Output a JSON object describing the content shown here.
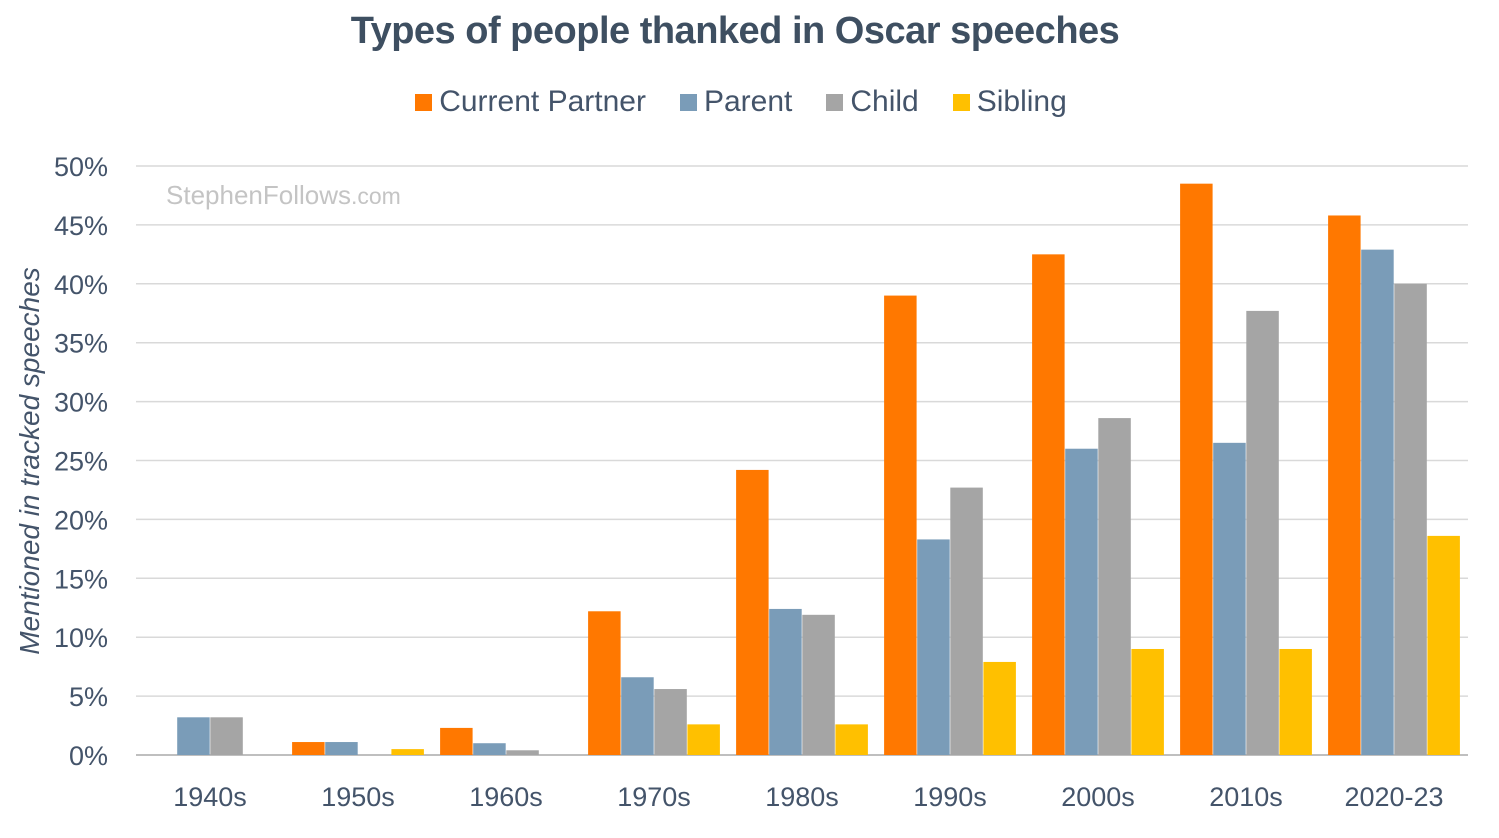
{
  "chart_data": {
    "type": "bar",
    "title": "Types of people thanked in Oscar speeches",
    "watermark": {
      "main": "StephenFollows",
      "suffix": ".com"
    },
    "xlabel": "",
    "ylabel": "Mentioned in tracked speeches",
    "categories": [
      "1940s",
      "1950s",
      "1960s",
      "1970s",
      "1980s",
      "1990s",
      "2000s",
      "2010s",
      "2020-23"
    ],
    "ylim": [
      0,
      50
    ],
    "yticks": [
      0,
      5,
      10,
      15,
      20,
      25,
      30,
      35,
      40,
      45,
      50
    ],
    "ytick_labels": [
      "0%",
      "5%",
      "10%",
      "15%",
      "20%",
      "25%",
      "30%",
      "35%",
      "40%",
      "45%",
      "50%"
    ],
    "grid": true,
    "legend_position": "top",
    "series": [
      {
        "name": "Current Partner",
        "color": "#ff7800",
        "values": [
          0,
          1.1,
          2.3,
          12.2,
          24.2,
          39.0,
          42.5,
          48.5,
          45.8
        ]
      },
      {
        "name": "Parent",
        "color": "#7a9cb8",
        "values": [
          3.2,
          1.1,
          1.0,
          6.6,
          12.4,
          18.3,
          26.0,
          26.5,
          42.9
        ]
      },
      {
        "name": "Child",
        "color": "#a5a5a5",
        "values": [
          3.2,
          0,
          0.4,
          5.6,
          11.9,
          22.7,
          28.6,
          37.7,
          40.0
        ]
      },
      {
        "name": "Sibling",
        "color": "#ffc000",
        "values": [
          0,
          0.5,
          0,
          2.6,
          2.6,
          7.9,
          9.0,
          9.0,
          18.6
        ]
      }
    ]
  }
}
